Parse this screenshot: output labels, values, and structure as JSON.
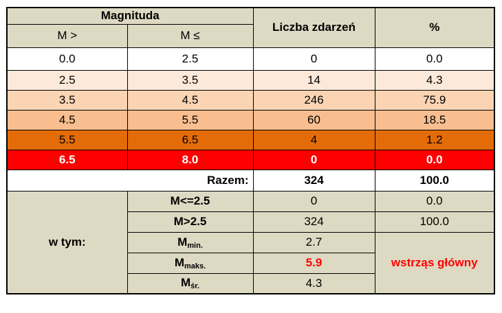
{
  "header": {
    "magnitude": "Magnituda",
    "m_gt": "M >",
    "m_le": "M ≤",
    "count": "Liczba zdarzeń",
    "percent": "%"
  },
  "rows": [
    {
      "m_gt": "0.0",
      "m_le": "2.5",
      "count": "0",
      "percent": "0.0",
      "color": "#ffffff"
    },
    {
      "m_gt": "2.5",
      "m_le": "3.5",
      "count": "14",
      "percent": "4.3",
      "color": "#fde9d9"
    },
    {
      "m_gt": "3.5",
      "m_le": "4.5",
      "count": "246",
      "percent": "75.9",
      "color": "#fbd4b4"
    },
    {
      "m_gt": "4.5",
      "m_le": "5.5",
      "count": "60",
      "percent": "18.5",
      "color": "#f9be8f"
    },
    {
      "m_gt": "5.5",
      "m_le": "6.5",
      "count": "4",
      "percent": "1.2",
      "color": "#e36c09"
    },
    {
      "m_gt": "6.5",
      "m_le": "8.0",
      "count": "0",
      "percent": "0.0",
      "color": "#ff0000"
    }
  ],
  "total": {
    "label": "Razem:",
    "count": "324",
    "percent": "100.0"
  },
  "breakdown": {
    "label": "w tym:",
    "le25": {
      "label": "M<=2.5",
      "count": "0",
      "percent": "0.0"
    },
    "gt25": {
      "label": "M>2.5",
      "count": "324",
      "percent": "100.0"
    },
    "min": {
      "label": "M",
      "sub": "min.",
      "value": "2.7"
    },
    "max": {
      "label": "M",
      "sub": "maks.",
      "value": "5.9"
    },
    "avg": {
      "label": "M",
      "sub": "śr.",
      "value": "4.3"
    },
    "mainshock": "wstrząs główny"
  }
}
